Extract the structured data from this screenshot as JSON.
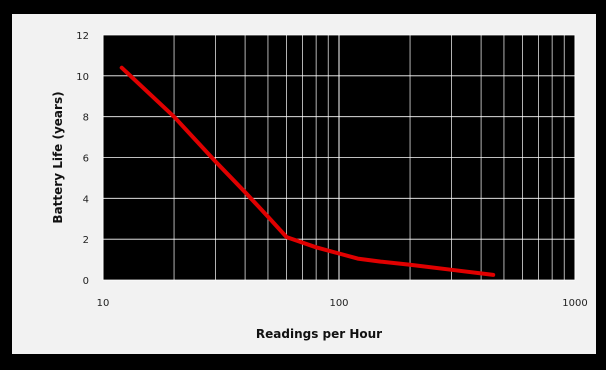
{
  "chart_data": {
    "type": "line",
    "title": "",
    "xlabel": "Readings per Hour",
    "ylabel": "Battery  Life (years)",
    "x_scale": "log",
    "xlim": [
      10,
      1000
    ],
    "ylim": [
      0,
      12
    ],
    "x_ticks": [
      {
        "value": 10,
        "label": "10"
      },
      {
        "value": 100,
        "label": "100"
      },
      {
        "value": 1000,
        "label": "1000"
      }
    ],
    "y_ticks": [
      {
        "value": 0,
        "label": "0"
      },
      {
        "value": 2,
        "label": "2"
      },
      {
        "value": 4,
        "label": "4"
      },
      {
        "value": 6,
        "label": "6"
      },
      {
        "value": 8,
        "label": "8"
      },
      {
        "value": 10,
        "label": "10"
      },
      {
        "value": 12,
        "label": "12"
      }
    ],
    "grid": true,
    "legend": "none",
    "series": [
      {
        "x": [
          12,
          20,
          30,
          40,
          50,
          60,
          80,
          100,
          120,
          150,
          200,
          300,
          450
        ],
        "y": [
          10.4,
          8.0,
          5.8,
          4.3,
          3.1,
          2.1,
          1.6,
          1.3,
          1.05,
          0.9,
          0.75,
          0.5,
          0.25
        ]
      }
    ],
    "colors": {
      "line": "#e00000",
      "plot_background": "#000000",
      "grid": "#ffffff",
      "chart_background": "#f2f2f2"
    }
  }
}
